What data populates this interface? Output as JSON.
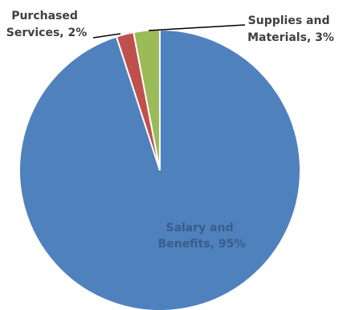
{
  "chart_data": {
    "type": "pie",
    "categories": [
      "Salary and Benefits",
      "Purchased Services",
      "Supplies and Materials"
    ],
    "values": [
      95,
      2,
      3
    ],
    "colors": [
      "#4F81BD",
      "#C0504D",
      "#9BBB59"
    ],
    "labels": [
      {
        "line1": "Salary and",
        "line2": "Benefits, 95%"
      },
      {
        "line1": "Purchased",
        "line2": "Services, 2%"
      },
      {
        "line1": "Supplies and",
        "line2": "Materials, 3%"
      }
    ],
    "label_colors": [
      "#385D8A",
      "#404040",
      "#404040"
    ],
    "start_angle": "12 o'clock",
    "direction": "counter-clockwise from Salary and Benefits end",
    "legend": "none"
  }
}
